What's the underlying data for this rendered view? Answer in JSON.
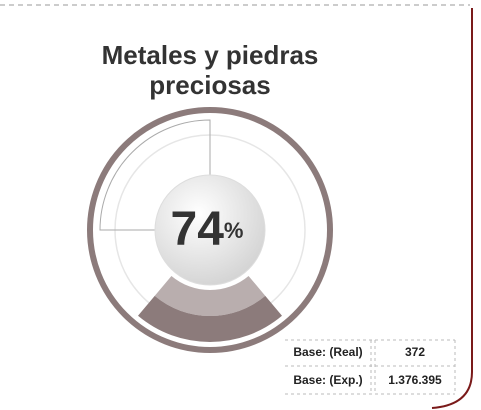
{
  "chart_data": {
    "type": "gauge",
    "title": [
      "Metales y piedras",
      "preciosas"
    ],
    "value": 74,
    "unit": "%",
    "color": "#8c7b7b"
  },
  "table": {
    "rows": [
      [
        "Base: (Real)",
        "372"
      ],
      [
        "Base: (Exp.)",
        "1.376.395"
      ]
    ]
  }
}
